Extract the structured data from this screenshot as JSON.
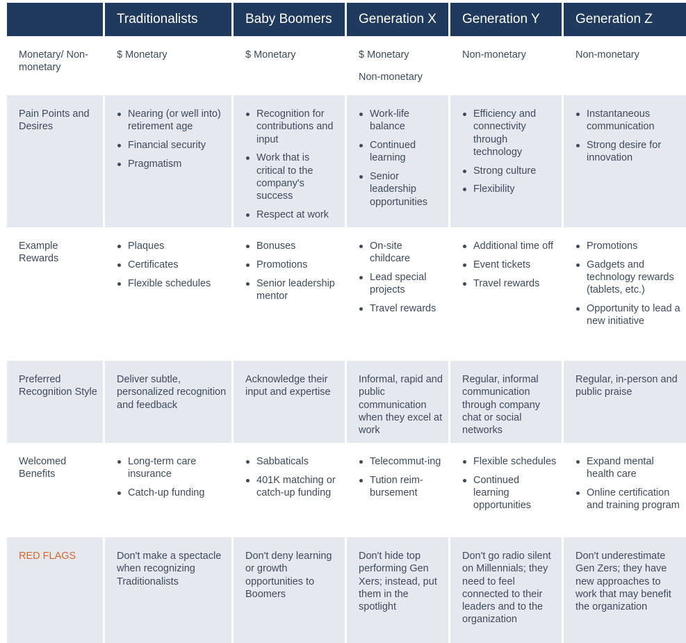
{
  "headers": [
    "",
    "Traditionalists",
    "Baby Boomers",
    "Generation X",
    "Generation Y",
    "Generation Z"
  ],
  "rows": [
    {
      "label": "Monetary/ Non-monetary",
      "cells": [
        {
          "type": "text",
          "lines": [
            "$ Monetary"
          ]
        },
        {
          "type": "text",
          "lines": [
            "$ Monetary"
          ]
        },
        {
          "type": "text",
          "lines": [
            "$ Monetary",
            "Non-monetary"
          ]
        },
        {
          "type": "text",
          "lines": [
            "Non-monetary"
          ]
        },
        {
          "type": "text",
          "lines": [
            "Non-monetary"
          ]
        }
      ]
    },
    {
      "label": "Pain Points and Desires",
      "cells": [
        {
          "type": "list",
          "items": [
            "Nearing (or well into) retirement age",
            "Financial security",
            "Pragmatism"
          ]
        },
        {
          "type": "list",
          "items": [
            "Recognition for contributions and input",
            "Work that is critical to the company's success",
            "Respect at work"
          ]
        },
        {
          "type": "list",
          "items": [
            "Work-life balance",
            "Continued learning",
            "Senior leadership opportunities"
          ]
        },
        {
          "type": "list",
          "items": [
            "Efficiency and connectivity through technology",
            "Strong culture",
            "Flexibility"
          ]
        },
        {
          "type": "list",
          "items": [
            "Instantaneous communication",
            "Strong desire for innovation"
          ]
        }
      ]
    },
    {
      "label": "Example Rewards",
      "cells": [
        {
          "type": "list",
          "items": [
            "Plaques",
            "Certificates",
            "Flexible schedules"
          ]
        },
        {
          "type": "list",
          "items": [
            "Bonuses",
            "Promotions",
            "Senior leadership mentor"
          ]
        },
        {
          "type": "list",
          "items": [
            "On-site childcare",
            "Lead special projects",
            "Travel rewards"
          ]
        },
        {
          "type": "list",
          "items": [
            "Additional time off",
            "Event tickets",
            "Travel rewards"
          ]
        },
        {
          "type": "list",
          "items": [
            "Promotions",
            "Gadgets and technology rewards (tablets, etc.)",
            "Opportunity to lead a new initiative"
          ]
        }
      ]
    },
    {
      "label": "Preferred Recognition Style",
      "cells": [
        {
          "type": "text",
          "lines": [
            "Deliver subtle, personalized recognition and feedback"
          ]
        },
        {
          "type": "text",
          "lines": [
            "Acknowledge their input and expertise"
          ]
        },
        {
          "type": "text",
          "lines": [
            "Informal, rapid and public communication when they excel at work"
          ]
        },
        {
          "type": "text",
          "lines": [
            "Regular, informal communication through company chat or social networks"
          ]
        },
        {
          "type": "text",
          "lines": [
            "Regular, in-person and public praise"
          ]
        }
      ]
    },
    {
      "label": "Welcomed Benefits",
      "cells": [
        {
          "type": "list",
          "items": [
            "Long-term care insurance",
            "Catch-up funding"
          ]
        },
        {
          "type": "list",
          "items": [
            "Sabbaticals",
            "401K matching or catch-up funding"
          ]
        },
        {
          "type": "list",
          "items": [
            "Telecommut-ing",
            "Tution reim-bursement"
          ]
        },
        {
          "type": "list",
          "items": [
            "Flexible schedules",
            "Continued learning opportunities"
          ]
        },
        {
          "type": "list",
          "items": [
            "Expand mental health care",
            "Online certification and training program"
          ]
        }
      ]
    },
    {
      "label": "RED FLAGS",
      "cells": [
        {
          "type": "text",
          "lines": [
            "Don't make a spectacle when recognizing Traditionalists"
          ]
        },
        {
          "type": "text",
          "lines": [
            "Don't deny learning or growth opportunities to Boomers"
          ]
        },
        {
          "type": "text",
          "lines": [
            "Don't hide top performing Gen Xers; instead, put them in the spotlight"
          ]
        },
        {
          "type": "text",
          "lines": [
            "Don't go radio silent on Millennials; they need to feel connected to their leaders and to the organization"
          ]
        },
        {
          "type": "text",
          "lines": [
            "Don't underestimate Gen Zers; they have new approaches to work that may benefit the organization"
          ]
        }
      ]
    }
  ],
  "colors": {
    "header_bg": "#1f3a5c",
    "shade": "#e5e9ef",
    "text": "#3e4a5c",
    "red_flag": "#d2672e"
  }
}
